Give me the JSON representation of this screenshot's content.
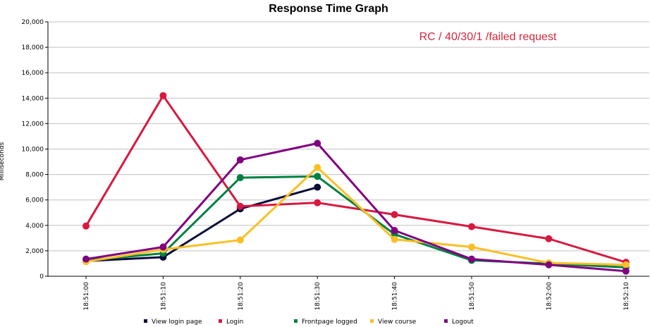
{
  "chart_data": {
    "type": "line",
    "title": "Response Time Graph",
    "annotation": "RC / 40/30/1 /failed request",
    "annotation_color": "#d7263d",
    "ylabel": "Milliseconds",
    "xlabel": "",
    "ylim": [
      0,
      20000
    ],
    "yticks": [
      "0",
      "2,000",
      "4,000",
      "6,000",
      "8,000",
      "10,000",
      "12,000",
      "14,000",
      "16,000",
      "18,000",
      "20,000"
    ],
    "categories": [
      "18:51:00",
      "18:51:10",
      "18:51:20",
      "18:51:30",
      "18:51:40",
      "18:51:50",
      "18:52:00",
      "18:52:10"
    ],
    "grid": true,
    "legend_position": "bottom",
    "series": [
      {
        "name": "View login page",
        "color": "#0b0b3b",
        "values": [
          1200,
          1500,
          5300,
          7000,
          null,
          null,
          null,
          null
        ]
      },
      {
        "name": "Login",
        "color": "#d7193f",
        "values": [
          3950,
          14200,
          5500,
          5780,
          4850,
          3900,
          2950,
          1100
        ]
      },
      {
        "name": "Frontpage logged",
        "color": "#008040",
        "values": [
          1250,
          1800,
          7750,
          7850,
          3300,
          1250,
          1000,
          700
        ]
      },
      {
        "name": "View course",
        "color": "#fbbf24",
        "values": [
          1150,
          2100,
          2850,
          8550,
          2900,
          2300,
          1050,
          900
        ]
      },
      {
        "name": "Logout",
        "color": "#800080",
        "values": [
          1350,
          2300,
          9150,
          10450,
          3600,
          1350,
          900,
          400
        ]
      }
    ]
  }
}
